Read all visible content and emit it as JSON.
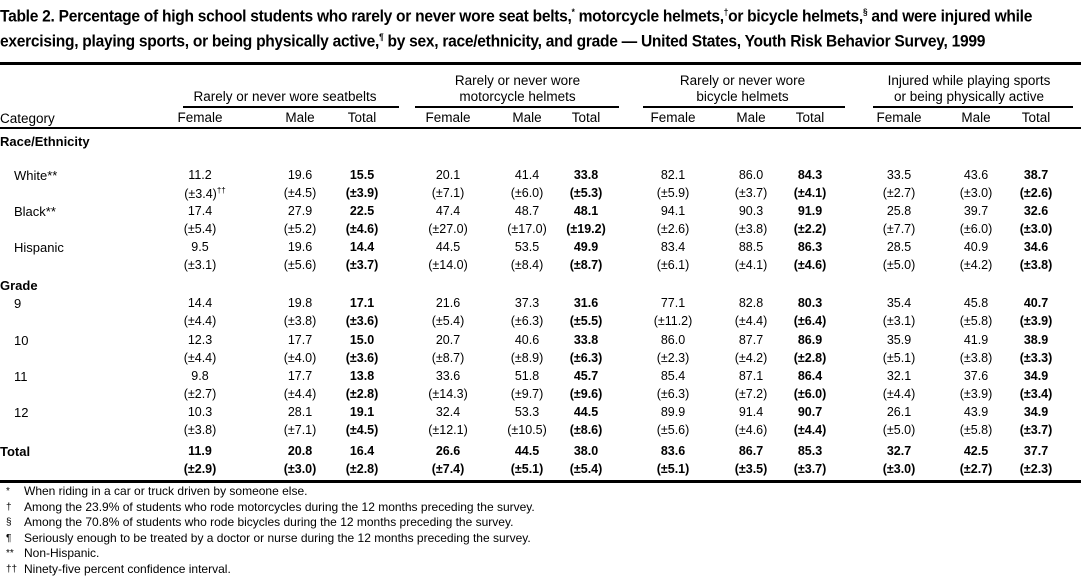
{
  "title": {
    "part1": "Table 2. Percentage of high school students who rarely or never wore seat belts,",
    "m1": "*",
    "part2": " motorcycle helmets,",
    "m2": "†",
    "part3": "or bicycle helmets,",
    "m3": "§",
    "part4": " and were injured while exercising, playing sports, or being physically active,",
    "m4": "¶",
    "part5": " by sex, race/ethnicity, and grade — United States, Youth Risk Behavior Survey, 1999"
  },
  "groups": [
    {
      "line1": "",
      "line2": "Rarely or never wore seatbelts"
    },
    {
      "line1": "Rarely or never wore",
      "line2": "motorcycle helmets"
    },
    {
      "line1": "Rarely or never wore",
      "line2": "bicycle helmets"
    },
    {
      "line1": "Injured while playing sports",
      "line2": "or being physically active"
    }
  ],
  "category_header": "Category",
  "subheaders": [
    "Female",
    "Male",
    "Total"
  ],
  "rows": [
    {
      "type": "section",
      "label": "Race/Ethnicity"
    },
    {
      "type": "data",
      "label": "White**",
      "values": [
        "11.2",
        "19.6",
        "15.5",
        "20.1",
        "41.4",
        "33.8",
        "82.1",
        "86.0",
        "84.3",
        "33.5",
        "43.6",
        "38.7"
      ],
      "ci": [
        "(±3.4)",
        "(±4.5)",
        "(±3.9)",
        "(±7.1)",
        "(±6.0)",
        "(±5.3)",
        "(±5.9)",
        "(±3.7)",
        "(±4.1)",
        "(±2.7)",
        "(±3.0)",
        "(±2.6)"
      ],
      "ci_note": "††"
    },
    {
      "type": "data",
      "label": "Black**",
      "values": [
        "17.4",
        "27.9",
        "22.5",
        "47.4",
        "48.7",
        "48.1",
        "94.1",
        "90.3",
        "91.9",
        "25.8",
        "39.7",
        "32.6"
      ],
      "ci": [
        "(±5.4)",
        "(±5.2)",
        "(±4.6)",
        "(±27.0)",
        "(±17.0)",
        "(±19.2)",
        "(±2.6)",
        "(±3.8)",
        "(±2.2)",
        "(±7.7)",
        "(±6.0)",
        "(±3.0)"
      ]
    },
    {
      "type": "data",
      "label": "Hispanic",
      "values": [
        "9.5",
        "19.6",
        "14.4",
        "44.5",
        "53.5",
        "49.9",
        "83.4",
        "88.5",
        "86.3",
        "28.5",
        "40.9",
        "34.6"
      ],
      "ci": [
        "(±3.1)",
        "(±5.6)",
        "(±3.7)",
        "(±14.0)",
        "(±8.4)",
        "(±8.7)",
        "(±6.1)",
        "(±4.1)",
        "(±4.6)",
        "(±5.0)",
        "(±4.2)",
        "(±3.8)"
      ]
    },
    {
      "type": "section",
      "label": "Grade"
    },
    {
      "type": "data",
      "label": "9",
      "values": [
        "14.4",
        "19.8",
        "17.1",
        "21.6",
        "37.3",
        "31.6",
        "77.1",
        "82.8",
        "80.3",
        "35.4",
        "45.8",
        "40.7"
      ],
      "ci": [
        "(±4.4)",
        "(±3.8)",
        "(±3.6)",
        "(±5.4)",
        "(±6.3)",
        "(±5.5)",
        "(±11.2)",
        "(±4.4)",
        "(±6.4)",
        "(±3.1)",
        "(±5.8)",
        "(±3.9)"
      ]
    },
    {
      "type": "data",
      "label": "10",
      "values": [
        "12.3",
        "17.7",
        "15.0",
        "20.7",
        "40.6",
        "33.8",
        "86.0",
        "87.7",
        "86.9",
        "35.9",
        "41.9",
        "38.9"
      ],
      "ci": [
        "(±4.4)",
        "(±4.0)",
        "(±3.6)",
        "(±8.7)",
        "(±8.9)",
        "(±6.3)",
        "(±2.3)",
        "(±4.2)",
        "(±2.8)",
        "(±5.1)",
        "(±3.8)",
        "(±3.3)"
      ]
    },
    {
      "type": "data",
      "label": "11",
      "values": [
        "9.8",
        "17.7",
        "13.8",
        "33.6",
        "51.8",
        "45.7",
        "85.4",
        "87.1",
        "86.4",
        "32.1",
        "37.6",
        "34.9"
      ],
      "ci": [
        "(±2.7)",
        "(±4.4)",
        "(±2.8)",
        "(±14.3)",
        "(±9.7)",
        "(±9.6)",
        "(±6.3)",
        "(±7.2)",
        "(±6.0)",
        "(±4.4)",
        "(±3.9)",
        "(±3.4)"
      ]
    },
    {
      "type": "data",
      "label": "12",
      "values": [
        "10.3",
        "28.1",
        "19.1",
        "32.4",
        "53.3",
        "44.5",
        "89.9",
        "91.4",
        "90.7",
        "26.1",
        "43.9",
        "34.9"
      ],
      "ci": [
        "(±3.8)",
        "(±7.1)",
        "(±4.5)",
        "(±12.1)",
        "(±10.5)",
        "(±8.6)",
        "(±5.6)",
        "(±4.6)",
        "(±4.4)",
        "(±5.0)",
        "(±5.8)",
        "(±3.7)"
      ]
    },
    {
      "type": "total",
      "label": "Total",
      "values": [
        "11.9",
        "20.8",
        "16.4",
        "26.6",
        "44.5",
        "38.0",
        "83.6",
        "86.7",
        "85.3",
        "32.7",
        "42.5",
        "37.7"
      ],
      "ci": [
        "(±2.9)",
        "(±3.0)",
        "(±2.8)",
        "(±7.4)",
        "(±5.1)",
        "(±5.4)",
        "(±5.1)",
        "(±3.5)",
        "(±3.7)",
        "(±3.0)",
        "(±2.7)",
        "(±2.3)"
      ]
    }
  ],
  "footnotes": [
    {
      "mark": "*",
      "text": "When riding in a car or truck driven by someone else."
    },
    {
      "mark": "†",
      "text": "Among the 23.9% of students who rode motorcycles during the 12 months preceding the survey."
    },
    {
      "mark": "§",
      "text": "Among the 70.8% of students who rode bicycles during the 12 months preceding the survey."
    },
    {
      "mark": "¶",
      "text": "Seriously enough to be treated by a doctor or nurse during the 12 months preceding the survey."
    },
    {
      "mark": "**",
      "text": "Non-Hispanic."
    },
    {
      "mark": "††",
      "text": "Ninety-five percent confidence interval."
    }
  ]
}
